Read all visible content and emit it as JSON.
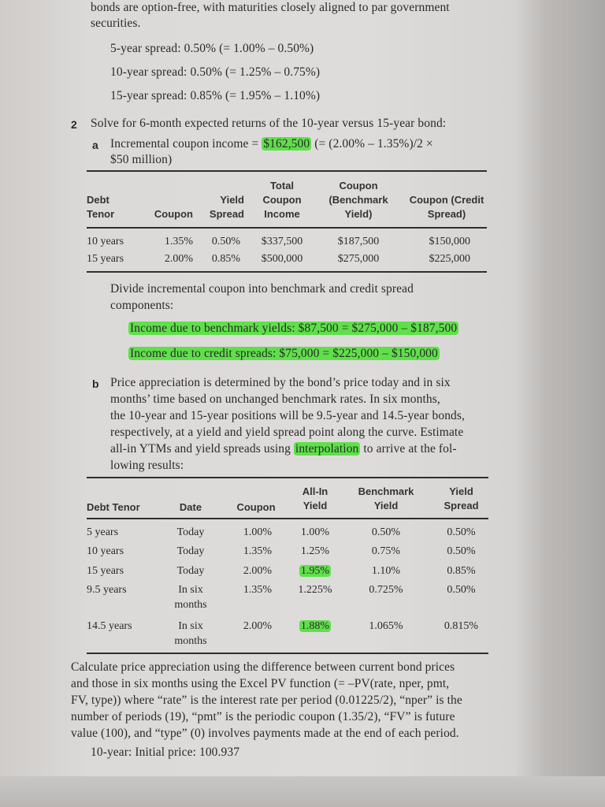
{
  "intro": {
    "line1": "bonds are option-free, with maturities closely aligned to par government",
    "line2": "securities.",
    "spreads": [
      "5-year spread: 0.50% (= 1.00% – 0.50%)",
      "10-year spread: 0.50% (= 1.25% – 0.75%)",
      "15-year spread: 0.85% (= 1.95% – 1.10%)"
    ]
  },
  "item2": {
    "number": "2",
    "text": "Solve for 6-month expected returns of the 10-year versus 15-year bond:",
    "a_label": "a",
    "a_pre": "Incremental coupon income = ",
    "a_highlight": "$162,500",
    "a_post": " (= (2.00% – 1.35%)/2 ×",
    "a_line2": "$50 million)"
  },
  "table1": {
    "headers": [
      [
        "Debt",
        "Tenor"
      ],
      [
        "Coupon"
      ],
      [
        "Yield",
        "Spread"
      ],
      [
        "Total",
        "Coupon",
        "Income"
      ],
      [
        "Coupon",
        "(Benchmark",
        "Yield)"
      ],
      [
        "Coupon (Credit",
        "Spread)"
      ]
    ],
    "rows": [
      [
        "10 years",
        "1.35%",
        "0.50%",
        "$337,500",
        "$187,500",
        "$150,000"
      ],
      [
        "15 years",
        "2.00%",
        "0.85%",
        "$500,000",
        "$275,000",
        "$225,000"
      ]
    ]
  },
  "divide": {
    "line1": "Divide incremental coupon into benchmark and credit spread",
    "line2": "components:",
    "highlight1": "Income due to benchmark yields: $87,500 = $275,000 – $187,500",
    "highlight2": "Income due to credit spreads: $75,000 = $225,000 – $150,000"
  },
  "b": {
    "label": "b",
    "lines": [
      "Price appreciation is determined by the bond’s price today and in six",
      "months’ time based on unchanged benchmark rates. In six months,",
      "the 10-year and 15-year positions will be 9.5-year and 14.5-year bonds,",
      "respectively, at a yield and yield spread point along the curve. Estimate"
    ],
    "line5_pre": "all-in YTMs and yield spreads using ",
    "line5_highlight": "interpolation",
    "line5_post": " to arrive at the fol-",
    "line6": "lowing results:"
  },
  "table2": {
    "headers": [
      [
        "Debt Tenor"
      ],
      [
        "Date"
      ],
      [
        "Coupon"
      ],
      [
        "All-In",
        "Yield"
      ],
      [
        "Benchmark",
        "Yield"
      ],
      [
        "Yield",
        "Spread"
      ]
    ],
    "rows": [
      {
        "tenor": "5 years",
        "date": "Today",
        "date2": "",
        "coupon": "1.00%",
        "allin": "1.00%",
        "allin_hl": false,
        "bench": "0.50%",
        "spread": "0.50%"
      },
      {
        "tenor": "10 years",
        "date": "Today",
        "date2": "",
        "coupon": "1.35%",
        "allin": "1.25%",
        "allin_hl": false,
        "bench": "0.75%",
        "spread": "0.50%"
      },
      {
        "tenor": "15 years",
        "date": "Today",
        "date2": "",
        "coupon": "2.00%",
        "allin": "1.95%",
        "allin_hl": true,
        "bench": "1.10%",
        "spread": "0.85%"
      },
      {
        "tenor": "9.5 years",
        "date": "In six",
        "date2": "months",
        "coupon": "1.35%",
        "allin": "1.225%",
        "allin_hl": false,
        "bench": "0.725%",
        "spread": "0.50%"
      },
      {
        "tenor": "14.5 years",
        "date": "In six",
        "date2": "months",
        "coupon": "2.00%",
        "allin": "1.88%",
        "allin_hl": true,
        "bench": "1.065%",
        "spread": "0.815%"
      }
    ]
  },
  "calc": {
    "lines": [
      "Calculate price appreciation using the difference between current bond prices",
      "and those in six months using the Excel PV function (= –PV(rate, nper, pmt,",
      "FV, type)) where “rate” is the interest rate per period (0.01225/2), “nper” is the",
      "number of periods (19), “pmt” is the periodic coupon (1.35/2), “FV” is future",
      "value (100), and “type” (0) involves payments made at the end of each period."
    ],
    "initial": "10-year: Initial price: 100.937"
  },
  "colors": {
    "highlight": "#5fe04a",
    "paper": "#dcdad8"
  }
}
